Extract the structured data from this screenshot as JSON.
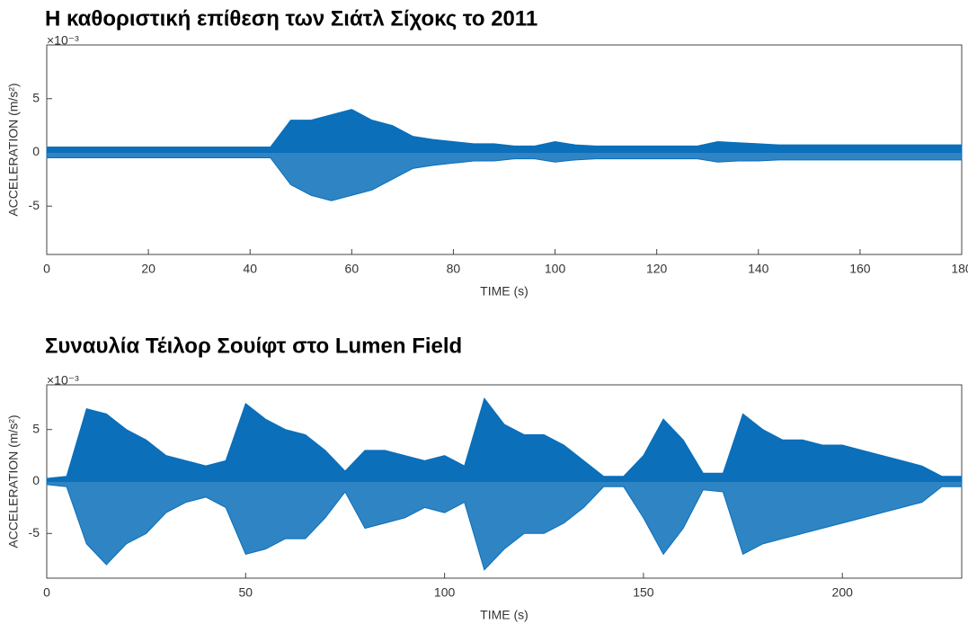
{
  "chart_data": [
    {
      "type": "area",
      "title": "Η καθοριστική επίθεση των Σιάτλ Σίχοκς το 2011",
      "y_label": "ACCELERATION (m/s²)",
      "x_label": "TIME (s)",
      "y_exponent": "×10⁻³",
      "color": "#0b6fba",
      "xlim": [
        0,
        180
      ],
      "xticks": [
        0,
        20,
        40,
        60,
        80,
        100,
        120,
        140,
        160,
        180
      ],
      "ylim": [
        -9.5,
        10
      ],
      "yticks": [
        -5,
        0,
        5
      ],
      "x": [
        0,
        4,
        8,
        12,
        16,
        20,
        24,
        28,
        32,
        36,
        40,
        44,
        48,
        52,
        56,
        60,
        64,
        68,
        72,
        76,
        80,
        84,
        88,
        92,
        96,
        100,
        104,
        108,
        112,
        116,
        120,
        124,
        128,
        132,
        136,
        140,
        144,
        148,
        152,
        156,
        160,
        164,
        168,
        172,
        176,
        180
      ],
      "upper": [
        0.5,
        0.5,
        0.5,
        0.5,
        0.5,
        0.5,
        0.5,
        0.5,
        0.5,
        0.5,
        0.5,
        0.5,
        3,
        3,
        3.5,
        4,
        3,
        2.5,
        1.5,
        1.2,
        1,
        0.8,
        0.8,
        0.6,
        0.6,
        1,
        0.7,
        0.6,
        0.6,
        0.6,
        0.6,
        0.6,
        0.6,
        1,
        0.9,
        0.8,
        0.7,
        0.7,
        0.7,
        0.7,
        0.7,
        0.7,
        0.7,
        0.7,
        0.7,
        0.7
      ],
      "lower": [
        -0.5,
        -0.5,
        -0.5,
        -0.5,
        -0.5,
        -0.5,
        -0.5,
        -0.5,
        -0.5,
        -0.5,
        -0.5,
        -0.5,
        -3,
        -4,
        -4.5,
        -4,
        -3.5,
        -2.5,
        -1.5,
        -1.2,
        -1,
        -0.8,
        -0.8,
        -0.6,
        -0.6,
        -0.9,
        -0.7,
        -0.6,
        -0.6,
        -0.6,
        -0.6,
        -0.6,
        -0.6,
        -0.9,
        -0.8,
        -0.8,
        -0.7,
        -0.7,
        -0.7,
        -0.7,
        -0.7,
        -0.7,
        -0.7,
        -0.7,
        -0.7,
        -0.7
      ]
    },
    {
      "type": "area",
      "title": "Συναυλία Τέιλορ Σουίφτ στο Lumen Field",
      "y_label": "ACCELERATION (m/s²)",
      "x_label": "TIME (s)",
      "y_exponent": "×10⁻³",
      "color": "#0b6fba",
      "xlim": [
        0,
        230
      ],
      "xticks": [
        0,
        50,
        100,
        150,
        200
      ],
      "ylim": [
        -9.3,
        9.3
      ],
      "yticks": [
        -5,
        0,
        5
      ],
      "x": [
        0,
        5,
        10,
        15,
        20,
        25,
        30,
        35,
        40,
        45,
        50,
        55,
        60,
        65,
        70,
        75,
        80,
        85,
        90,
        95,
        100,
        105,
        110,
        115,
        120,
        125,
        130,
        135,
        140,
        145,
        150,
        155,
        160,
        165,
        170,
        175,
        180,
        185,
        190,
        195,
        200,
        205,
        210,
        215,
        220,
        225,
        230
      ],
      "upper": [
        0.3,
        0.5,
        7,
        6.5,
        5,
        4,
        2.5,
        2,
        1.5,
        2,
        7.5,
        6,
        5,
        4.5,
        3,
        1,
        3,
        3,
        2.5,
        2,
        2.5,
        1.5,
        8,
        5.5,
        4.5,
        4.5,
        3.5,
        2,
        0.5,
        0.5,
        2.5,
        6,
        4,
        0.8,
        0.8,
        6.5,
        5,
        4,
        4,
        3.5,
        3.5,
        3,
        2.5,
        2,
        1.5,
        0.5,
        0.5
      ],
      "lower": [
        -0.3,
        -0.5,
        -6,
        -8,
        -6,
        -5,
        -3,
        -2,
        -1.5,
        -2.5,
        -7,
        -6.5,
        -5.5,
        -5.5,
        -3.5,
        -1,
        -4.5,
        -4,
        -3.5,
        -2.5,
        -3,
        -2,
        -8.5,
        -6.5,
        -5,
        -5,
        -4,
        -2.5,
        -0.5,
        -0.5,
        -3.5,
        -7,
        -4.5,
        -0.8,
        -1,
        -7,
        -6,
        -5.5,
        -5,
        -4.5,
        -4,
        -3.5,
        -3,
        -2.5,
        -2,
        -0.5,
        -0.5
      ]
    }
  ]
}
